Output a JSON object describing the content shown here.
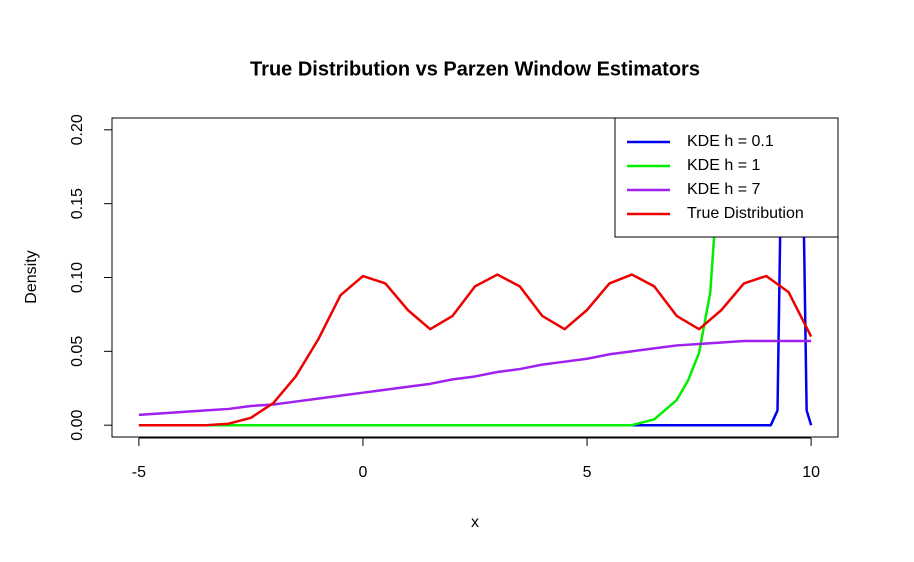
{
  "chart_data": {
    "type": "line",
    "title": "True Distribution vs Parzen Window Estimators",
    "x_label": "x",
    "y_label": "Density",
    "xlim": [
      -5.6,
      10.6
    ],
    "ylim": [
      -0.008,
      0.208
    ],
    "xticks": [
      -5,
      0,
      5,
      10
    ],
    "yticks": [
      {
        "value": 0,
        "label": "0.00"
      },
      0.05,
      {
        "value": 0.1,
        "label": "0.10"
      },
      0.15,
      {
        "value": 0.2,
        "label": "0.20"
      }
    ],
    "legend": "topright",
    "series": [
      {
        "name": "KDE h = 0.1",
        "color": "#0000ee",
        "x": [
          -5,
          6,
          9.1,
          9.25,
          9.35,
          9.8,
          9.9,
          10
        ],
        "values": [
          0,
          0,
          0,
          0.01,
          0.21,
          0.21,
          0.01,
          0
        ]
      },
      {
        "name": "KDE h = 1",
        "color": "#00ee00",
        "x": [
          -5,
          6,
          6.5,
          7,
          7.25,
          7.5,
          7.75,
          8,
          8.1
        ],
        "values": [
          0,
          0,
          0.004,
          0.017,
          0.03,
          0.049,
          0.09,
          0.2,
          0.23
        ]
      },
      {
        "name": "KDE h = 7",
        "color": "#a020f0",
        "x": [
          -5,
          -4.5,
          -4,
          -3.5,
          -3,
          -2.5,
          -2,
          -1.5,
          -1,
          -0.5,
          0,
          0.5,
          1,
          1.5,
          2,
          2.5,
          3,
          3.5,
          4,
          4.5,
          5,
          5.5,
          6,
          6.5,
          7,
          7.5,
          8,
          8.5,
          9,
          9.5,
          10
        ],
        "values": [
          0.007,
          0.008,
          0.009,
          0.01,
          0.011,
          0.013,
          0.014,
          0.016,
          0.018,
          0.02,
          0.022,
          0.024,
          0.026,
          0.028,
          0.031,
          0.033,
          0.036,
          0.038,
          0.041,
          0.043,
          0.045,
          0.048,
          0.05,
          0.052,
          0.054,
          0.055,
          0.056,
          0.057,
          0.057,
          0.057,
          0.057
        ]
      },
      {
        "name": "True Distribution",
        "color": "#ee0000",
        "x": [
          -5,
          -4.5,
          -4,
          -3.5,
          -3,
          -2.5,
          -2,
          -1.5,
          -1,
          -0.5,
          0,
          0.5,
          1,
          1.5,
          2,
          2.5,
          3,
          3.5,
          4,
          4.5,
          5,
          5.5,
          6,
          6.5,
          7,
          7.5,
          8,
          8.5,
          9,
          9.5,
          10
        ],
        "values": [
          0,
          0,
          0,
          0,
          0.001,
          0.005,
          0.015,
          0.033,
          0.058,
          0.088,
          0.101,
          0.096,
          0.078,
          0.065,
          0.074,
          0.094,
          0.102,
          0.094,
          0.074,
          0.065,
          0.078,
          0.096,
          0.102,
          0.094,
          0.074,
          0.065,
          0.078,
          0.096,
          0.101,
          0.09,
          0.06
        ]
      }
    ]
  }
}
